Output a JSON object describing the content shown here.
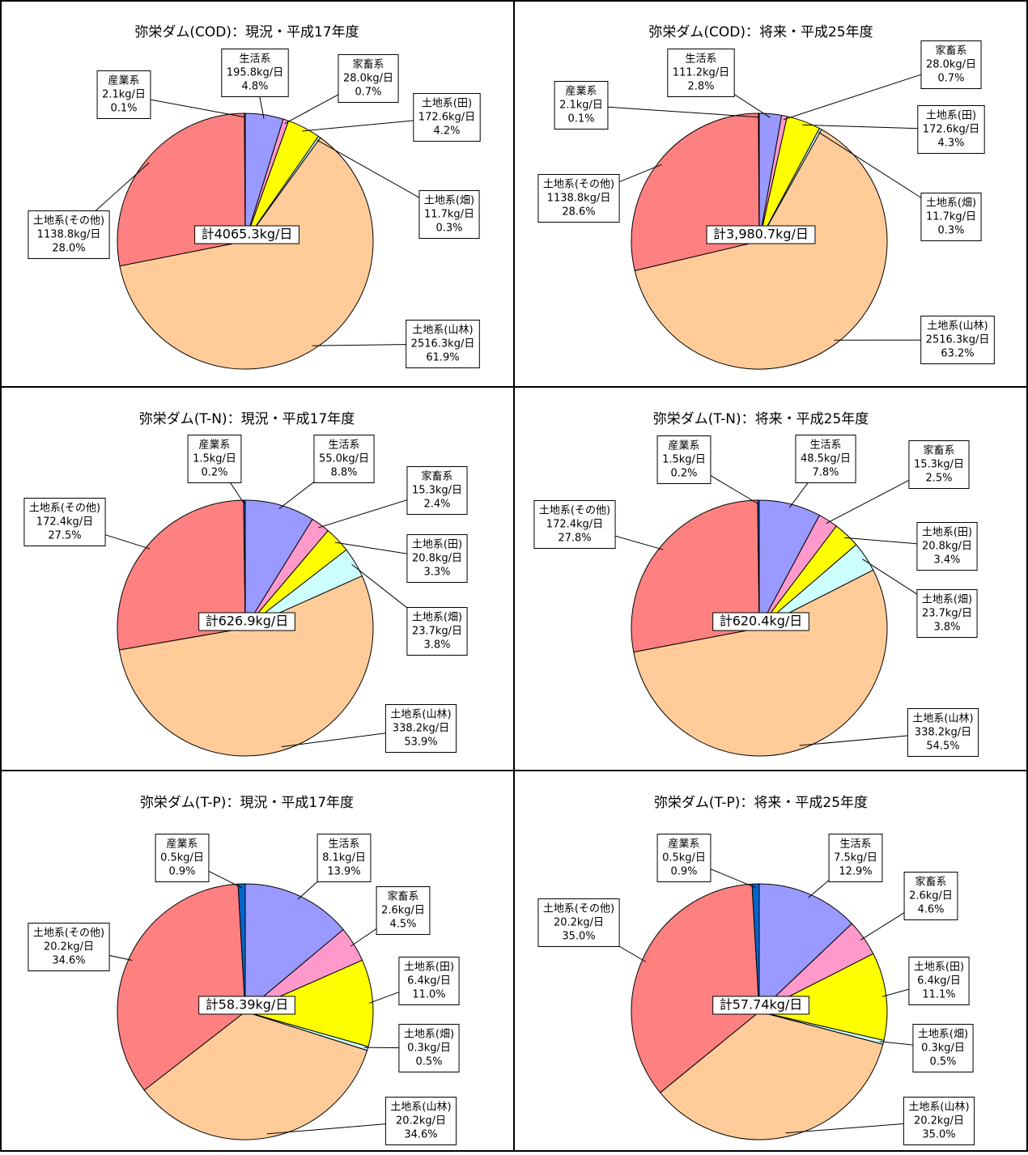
{
  "chart_data": [
    {
      "type": "pie",
      "title": "弥栄ダム(COD)：現況・平成17年度",
      "categories": [
        "生活系",
        "家畜系",
        "土地系(田)",
        "土地系(畑)",
        "土地系(山林)",
        "土地系(その他)",
        "産業系"
      ],
      "values": [
        4.8,
        0.7,
        4.2,
        0.3,
        61.9,
        28.0,
        0.1
      ],
      "value_labels": [
        "4.8%",
        "0.7%",
        "4.2%",
        "0.3%",
        "61.9%",
        "28.0%",
        "0.1%"
      ],
      "amount_labels": [
        "195.8kg/日",
        "28.0kg/日",
        "172.6kg/日",
        "11.7kg/日",
        "2516.3kg/日",
        "1138.8kg/日",
        "2.1kg/日"
      ],
      "colors": [
        "#9999ff",
        "#ff99cc",
        "#ffff00",
        "#ccffff",
        "#ffcc99",
        "#ff8080",
        "#0066cc"
      ],
      "total_label": "計4065.3kg/日"
    },
    {
      "type": "pie",
      "title": "弥栄ダム(COD)：将来・平成25年度",
      "categories": [
        "生活系",
        "家畜系",
        "土地系(田)",
        "土地系(畑)",
        "土地系(山林)",
        "土地系(その他)",
        "産業系"
      ],
      "values": [
        2.8,
        0.7,
        4.3,
        0.3,
        63.2,
        28.6,
        0.1
      ],
      "value_labels": [
        "2.8%",
        "0.7%",
        "4.3%",
        "0.3%",
        "63.2%",
        "28.6%",
        "0.1%"
      ],
      "amount_labels": [
        "111.2kg/日",
        "28.0kg/日",
        "172.6kg/日",
        "11.7kg/日",
        "2516.3kg/日",
        "1138.8kg/日",
        "2.1kg/日"
      ],
      "colors": [
        "#9999ff",
        "#ff99cc",
        "#ffff00",
        "#ccffff",
        "#ffcc99",
        "#ff8080",
        "#0066cc"
      ],
      "total_label": "計3,980.7kg/日"
    },
    {
      "type": "pie",
      "title": "弥栄ダム(T-N)：現況・平成17年度",
      "categories": [
        "生活系",
        "家畜系",
        "土地系(田)",
        "土地系(畑)",
        "土地系(山林)",
        "土地系(その他)",
        "産業系"
      ],
      "values": [
        8.8,
        2.4,
        3.3,
        3.8,
        53.9,
        27.5,
        0.2
      ],
      "value_labels": [
        "8.8%",
        "2.4%",
        "3.3%",
        "3.8%",
        "53.9%",
        "27.5%",
        "0.2%"
      ],
      "amount_labels": [
        "55.0kg/日",
        "15.3kg/日",
        "20.8kg/日",
        "23.7kg/日",
        "338.2kg/日",
        "172.4kg/日",
        "1.5kg/日"
      ],
      "colors": [
        "#9999ff",
        "#ff99cc",
        "#ffff00",
        "#ccffff",
        "#ffcc99",
        "#ff8080",
        "#0066cc"
      ],
      "total_label": "計626.9kg/日"
    },
    {
      "type": "pie",
      "title": "弥栄ダム(T-N)：将来・平成25年度",
      "categories": [
        "生活系",
        "家畜系",
        "土地系(田)",
        "土地系(畑)",
        "土地系(山林)",
        "土地系(その他)",
        "産業系"
      ],
      "values": [
        7.8,
        2.5,
        3.4,
        3.8,
        54.5,
        27.8,
        0.2
      ],
      "value_labels": [
        "7.8%",
        "2.5%",
        "3.4%",
        "3.8%",
        "54.5%",
        "27.8%",
        "0.2%"
      ],
      "amount_labels": [
        "48.5kg/日",
        "15.3kg/日",
        "20.8kg/日",
        "23.7kg/日",
        "338.2kg/日",
        "172.4kg/日",
        "1.5kg/日"
      ],
      "colors": [
        "#9999ff",
        "#ff99cc",
        "#ffff00",
        "#ccffff",
        "#ffcc99",
        "#ff8080",
        "#0066cc"
      ],
      "total_label": "計620.4kg/日"
    },
    {
      "type": "pie",
      "title": "弥栄ダム(T-P)：現況・平成17年度",
      "categories": [
        "生活系",
        "家畜系",
        "土地系(田)",
        "土地系(畑)",
        "土地系(山林)",
        "土地系(その他)",
        "産業系"
      ],
      "values": [
        13.9,
        4.5,
        11.0,
        0.5,
        34.6,
        34.6,
        0.9
      ],
      "value_labels": [
        "13.9%",
        "4.5%",
        "11.0%",
        "0.5%",
        "34.6%",
        "34.6%",
        "0.9%"
      ],
      "amount_labels": [
        "8.1kg/日",
        "2.6kg/日",
        "6.4kg/日",
        "0.3kg/日",
        "20.2kg/日",
        "20.2kg/日",
        "0.5kg/日"
      ],
      "colors": [
        "#9999ff",
        "#ff99cc",
        "#ffff00",
        "#ccffff",
        "#ffcc99",
        "#ff8080",
        "#0066cc"
      ],
      "total_label": "計58.39kg/日"
    },
    {
      "type": "pie",
      "title": "弥栄ダム(T-P)：将来・平成25年度",
      "categories": [
        "生活系",
        "家畜系",
        "土地系(田)",
        "土地系(畑)",
        "土地系(山林)",
        "土地系(その他)",
        "産業系"
      ],
      "values": [
        12.9,
        4.6,
        11.1,
        0.5,
        35.0,
        35.0,
        0.9
      ],
      "value_labels": [
        "12.9%",
        "4.6%",
        "11.1%",
        "0.5%",
        "35.0%",
        "35.0%",
        "0.9%"
      ],
      "amount_labels": [
        "7.5kg/日",
        "2.6kg/日",
        "6.4kg/日",
        "0.3kg/日",
        "20.2kg/日",
        "20.2kg/日",
        "0.5kg/日"
      ],
      "colors": [
        "#9999ff",
        "#ff99cc",
        "#ffff00",
        "#ccffff",
        "#ffcc99",
        "#ff8080",
        "#0066cc"
      ],
      "total_label": "計57.74kg/日"
    }
  ]
}
